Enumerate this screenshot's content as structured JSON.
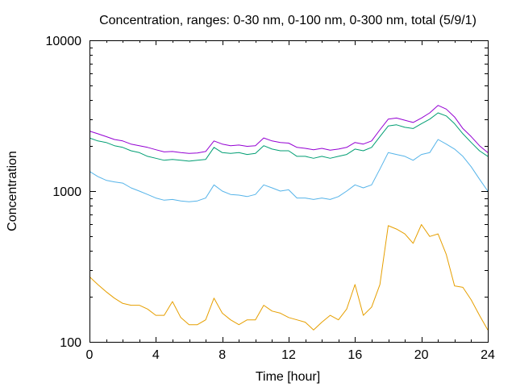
{
  "chart_data": {
    "type": "line",
    "title": "Concentration, ranges: 0-30 nm, 0-100 nm, 0-300 nm, total (5/9/1)",
    "xlabel": "Time [hour]",
    "ylabel": "Concentration",
    "xlim": [
      0,
      24
    ],
    "ylim": [
      100,
      10000
    ],
    "yscale": "log",
    "grid": false,
    "legend": "none",
    "x_ticks": [
      0,
      4,
      8,
      12,
      16,
      20,
      24
    ],
    "x_tick_labels": [
      "0",
      "4",
      "8",
      "12",
      "16",
      "20",
      "24"
    ],
    "y_ticks": [
      100,
      1000,
      10000
    ],
    "y_tick_labels": [
      "100",
      "1000",
      "10000"
    ],
    "x": [
      0,
      0.5,
      1,
      1.5,
      2,
      2.5,
      3,
      3.5,
      4,
      4.5,
      5,
      5.5,
      6,
      6.5,
      7,
      7.5,
      8,
      8.5,
      9,
      9.5,
      10,
      10.5,
      11,
      11.5,
      12,
      12.5,
      13,
      13.5,
      14,
      14.5,
      15,
      15.5,
      16,
      16.5,
      17,
      17.5,
      18,
      18.5,
      19,
      19.5,
      20,
      20.5,
      21,
      21.5,
      22,
      22.5,
      23,
      23.5,
      24
    ],
    "series": [
      {
        "color": "#e69f00",
        "values": [
          270,
          240,
          215,
          195,
          180,
          175,
          175,
          165,
          150,
          150,
          185,
          145,
          130,
          130,
          140,
          195,
          155,
          140,
          130,
          140,
          140,
          175,
          160,
          155,
          145,
          140,
          135,
          120,
          135,
          150,
          140,
          165,
          240,
          150,
          170,
          240,
          590,
          560,
          520,
          450,
          600,
          500,
          520,
          380,
          235,
          230,
          190,
          150,
          120
        ]
      },
      {
        "color": "#56b4e9",
        "values": [
          1350,
          1250,
          1180,
          1150,
          1130,
          1050,
          1000,
          950,
          900,
          870,
          880,
          860,
          850,
          860,
          900,
          1100,
          1000,
          950,
          940,
          920,
          950,
          1100,
          1050,
          1000,
          1020,
          900,
          900,
          880,
          900,
          880,
          920,
          1000,
          1100,
          1050,
          1100,
          1400,
          1800,
          1750,
          1700,
          1600,
          1750,
          1800,
          2200,
          2050,
          1900,
          1700,
          1450,
          1200,
          1000
        ]
      },
      {
        "color": "#009e73",
        "values": [
          2250,
          2150,
          2100,
          2000,
          1950,
          1850,
          1800,
          1700,
          1650,
          1600,
          1620,
          1600,
          1580,
          1600,
          1620,
          1950,
          1800,
          1780,
          1800,
          1750,
          1780,
          2000,
          1900,
          1850,
          1850,
          1700,
          1700,
          1650,
          1700,
          1650,
          1700,
          1750,
          1900,
          1850,
          1950,
          2300,
          2700,
          2750,
          2650,
          2600,
          2800,
          3000,
          3300,
          3150,
          2800,
          2400,
          2100,
          1850,
          1700
        ]
      },
      {
        "color": "#9400d3",
        "values": [
          2500,
          2400,
          2300,
          2200,
          2150,
          2050,
          2000,
          1950,
          1880,
          1820,
          1830,
          1800,
          1780,
          1790,
          1830,
          2150,
          2050,
          2000,
          2020,
          1980,
          2000,
          2250,
          2150,
          2100,
          2080,
          1950,
          1920,
          1880,
          1920,
          1870,
          1900,
          1950,
          2100,
          2050,
          2150,
          2550,
          3000,
          3050,
          2950,
          2850,
          3050,
          3300,
          3700,
          3500,
          3100,
          2600,
          2300,
          2000,
          1800
        ]
      }
    ]
  }
}
